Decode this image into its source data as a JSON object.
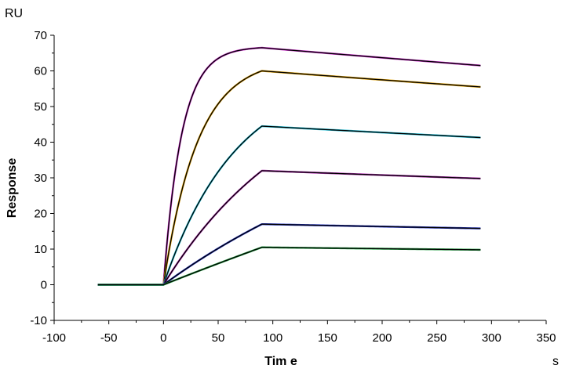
{
  "chart_data": {
    "type": "line",
    "title": "",
    "xlabel": "Tim e",
    "ylabel": "Response",
    "x_unit": "s",
    "y_unit": "RU",
    "xlim": [
      -100,
      350
    ],
    "ylim": [
      -10,
      70
    ],
    "x_ticks": [
      -100,
      -50,
      0,
      50,
      100,
      150,
      200,
      250,
      300,
      350
    ],
    "y_ticks": [
      -10,
      0,
      10,
      20,
      30,
      40,
      50,
      60,
      70
    ],
    "grid": false,
    "legend": "none",
    "baseline": {
      "x_start": -60,
      "x_end": 0,
      "value": 0
    },
    "association_end": 90,
    "dissociation_end": 290,
    "series": [
      {
        "peak": 66.5,
        "end": 61.5,
        "k": 0.06,
        "color": "#cc33cc"
      },
      {
        "peak": 60.0,
        "end": 55.5,
        "k": 0.032,
        "color": "#e0a000"
      },
      {
        "peak": 44.5,
        "end": 41.3,
        "k": 0.015,
        "color": "#20c0d8"
      },
      {
        "peak": 32.0,
        "end": 29.8,
        "k": 0.008,
        "color": "#b030b0"
      },
      {
        "peak": 17.0,
        "end": 15.8,
        "k": 0.004,
        "color": "#2030c0"
      },
      {
        "peak": 10.5,
        "end": 9.8,
        "k": 0.001,
        "color": "#20a040"
      }
    ]
  }
}
